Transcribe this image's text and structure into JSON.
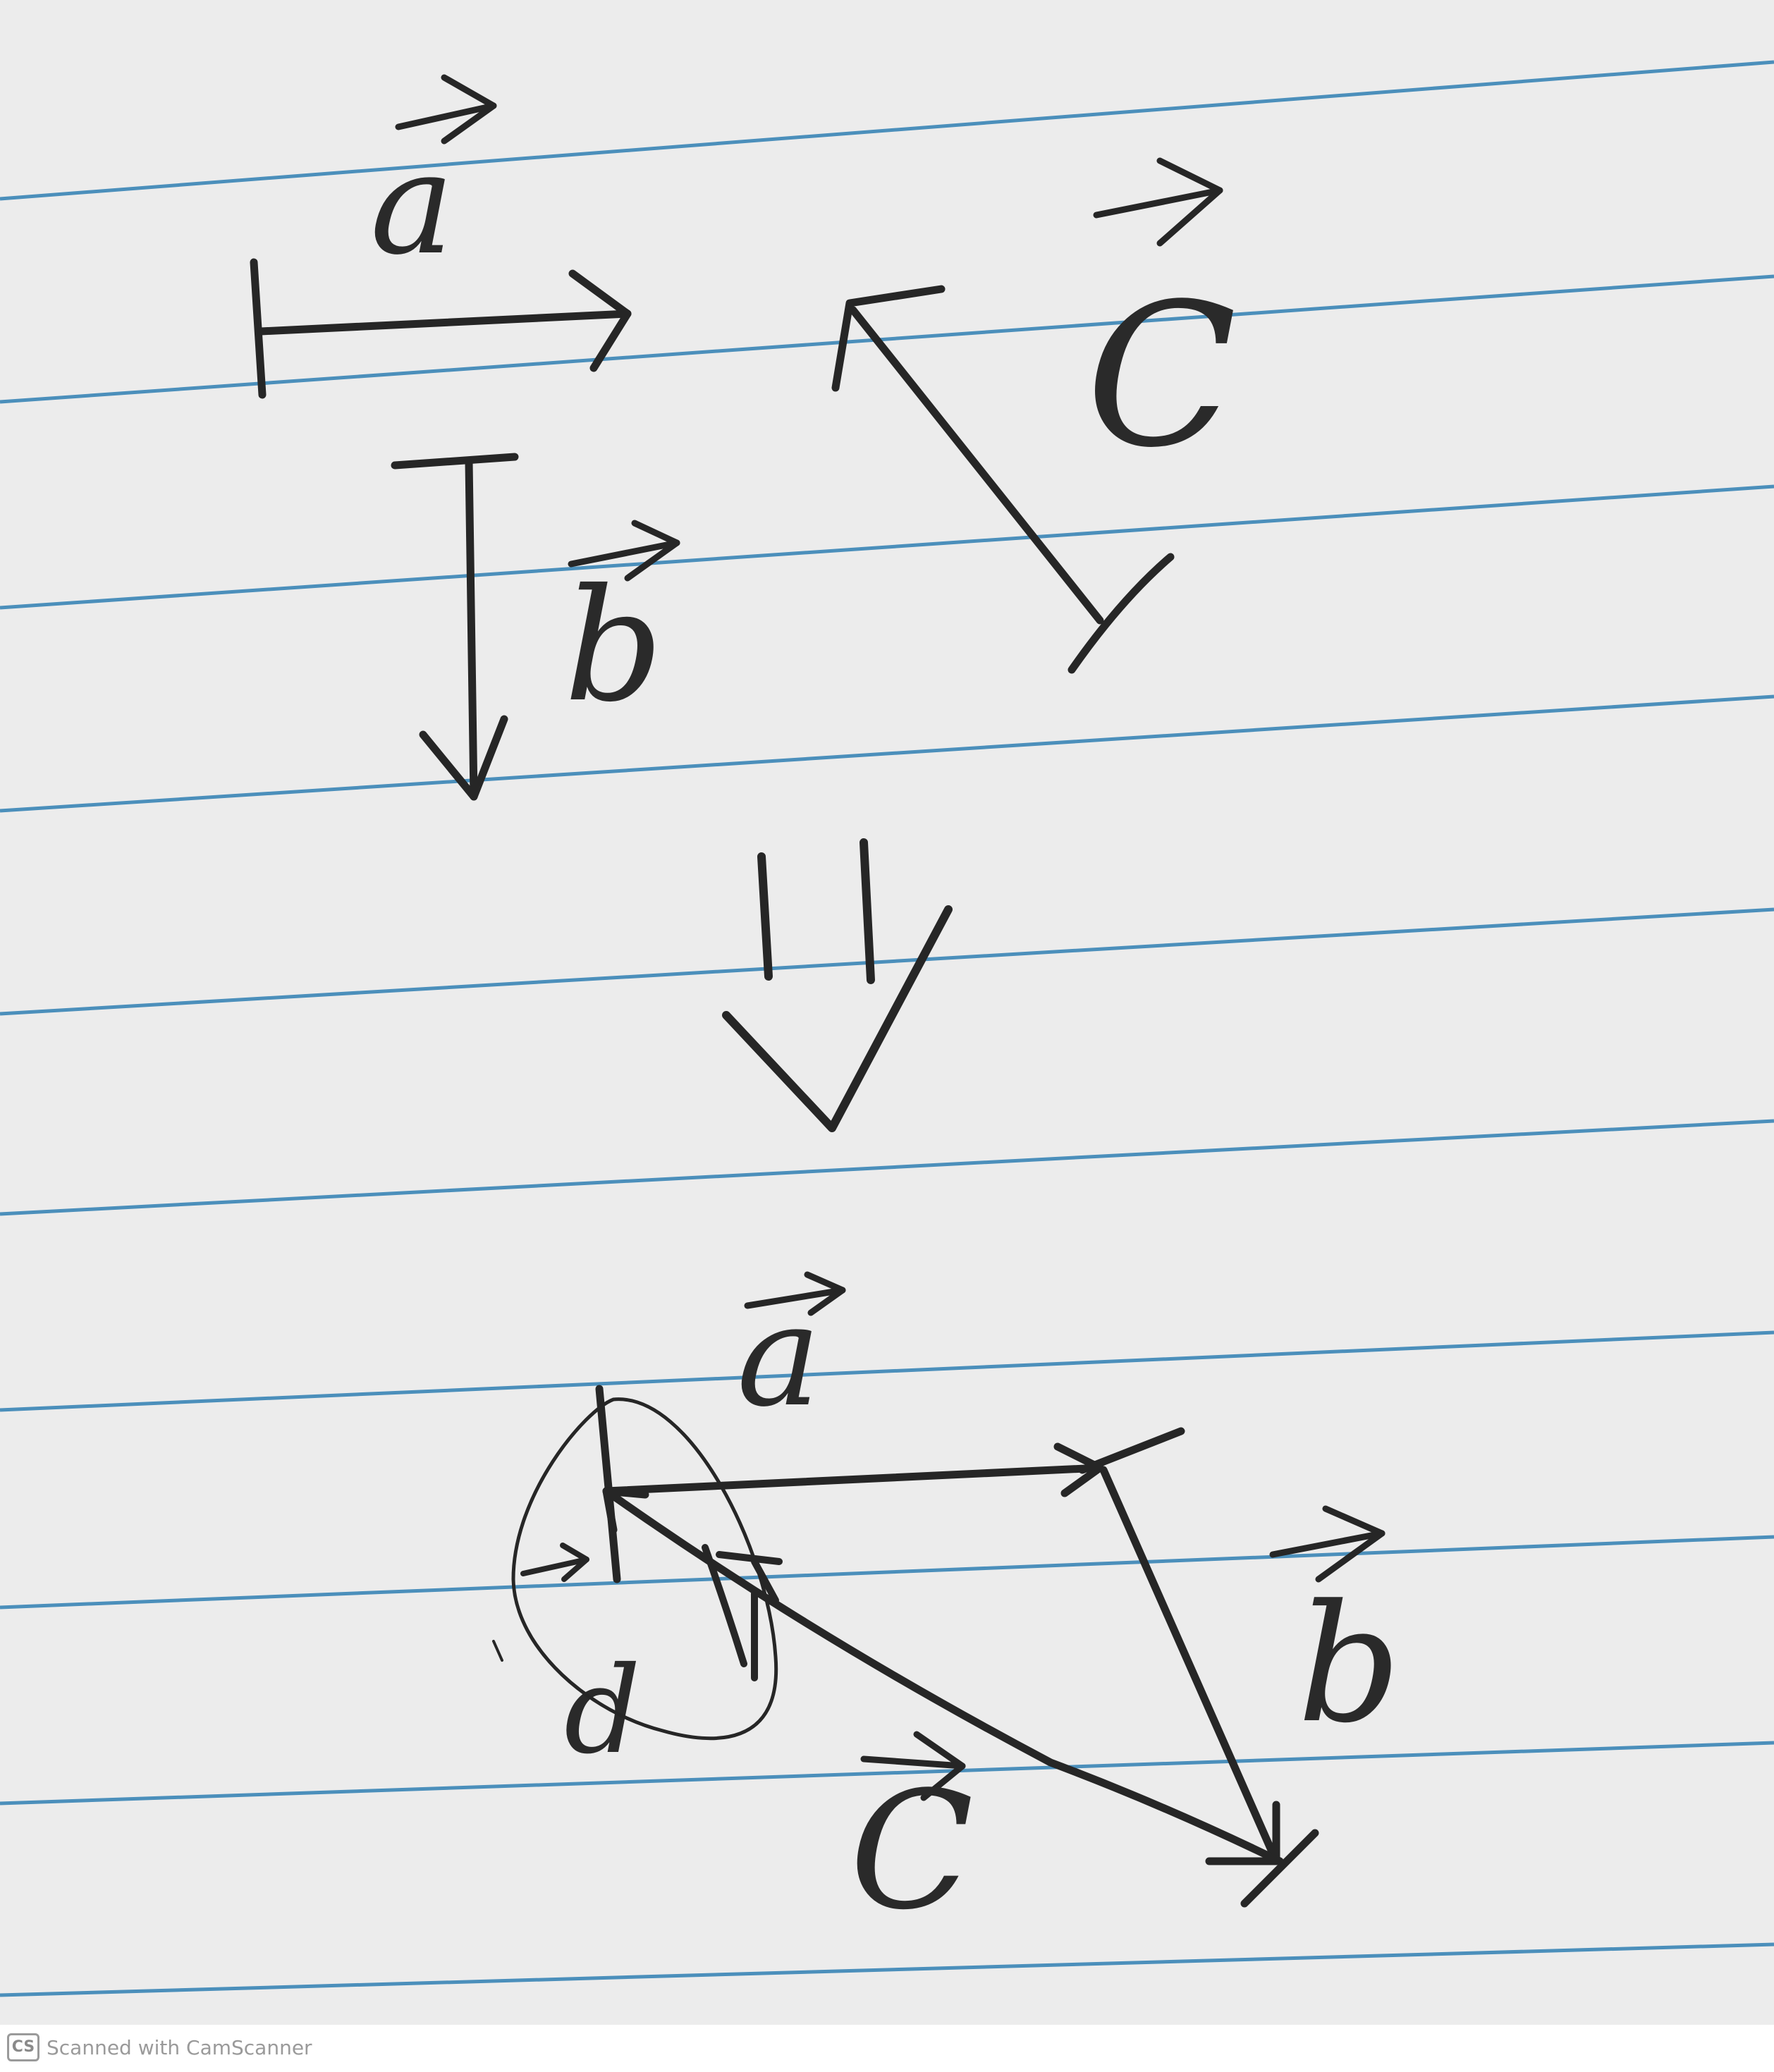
{
  "labels": {
    "a_top": "a",
    "b_top": "b",
    "c_top": "C",
    "a_bottom": "a",
    "b_bottom": "b",
    "c_bottom": "C",
    "d_bottom": "d"
  },
  "footer": {
    "badge": "CS",
    "text": "Scanned with CamScanner"
  },
  "colors": {
    "paper": "#ececec",
    "ink": "#262626",
    "rule_lines": "#2f7fb3"
  }
}
